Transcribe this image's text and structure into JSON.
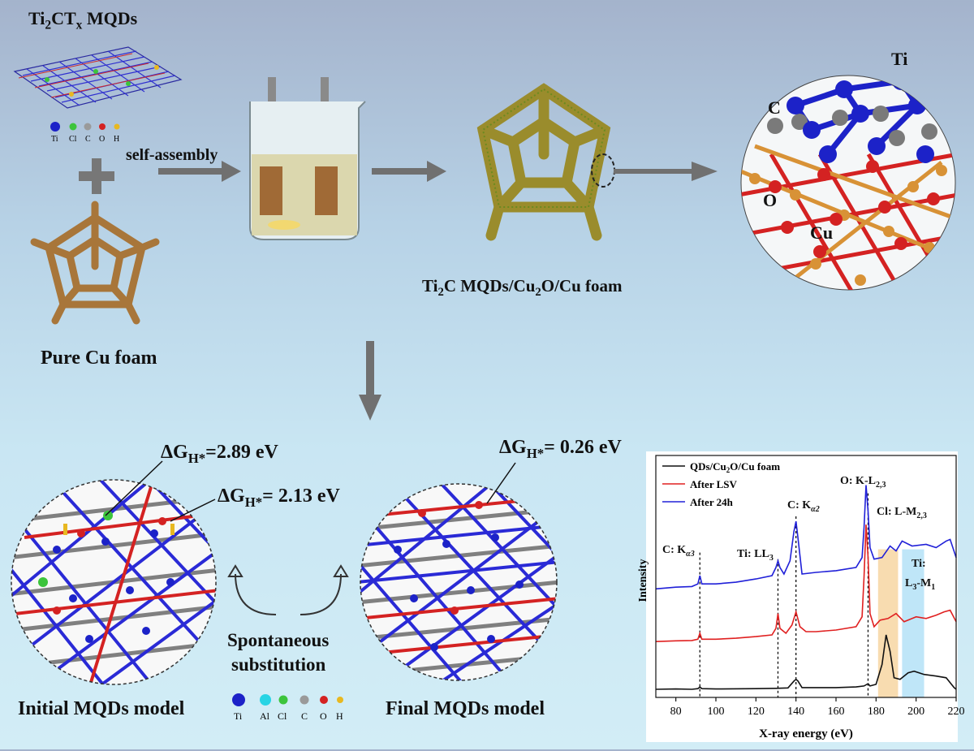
{
  "labels": {
    "mxene_title": "Ti2CTx MQDs",
    "self_assembly": "self-assembly",
    "pure_cu_foam": "Pure Cu foam",
    "composite_foam": "Ti2C MQDs/Cu2O/Cu foam",
    "spontaneous_line1": "Spontaneous",
    "spontaneous_line2": "substitution",
    "initial_model": "Initial MQDs model",
    "final_model": "Final MQDs model",
    "dg_initial_1": "2.89 eV",
    "dg_initial_2": "2.13 eV",
    "dg_final": "0.26 eV"
  },
  "atom_labels": {
    "ti": "Ti",
    "c": "C",
    "o": "O",
    "cu": "Cu"
  },
  "legend_top": [
    {
      "symbol": "Ti",
      "color": "#1c22c8"
    },
    {
      "symbol": "Cl",
      "color": "#3cc43c"
    },
    {
      "symbol": "C",
      "color": "#9a9a9a"
    },
    {
      "symbol": "O",
      "color": "#d42222"
    },
    {
      "symbol": "H",
      "color": "#e8b820"
    }
  ],
  "legend_bottom": [
    {
      "symbol": "Ti",
      "color": "#1c22c8"
    },
    {
      "symbol": "Al",
      "color": "#28d4e4"
    },
    {
      "symbol": "Cl",
      "color": "#3cc43c"
    },
    {
      "symbol": "C",
      "color": "#9a9a9a"
    },
    {
      "symbol": "O",
      "color": "#d42222"
    },
    {
      "symbol": "H",
      "color": "#e8b820"
    }
  ],
  "colors": {
    "arrow": "#707070",
    "foam": "#a8763a",
    "composite": "#9a8c2c",
    "ti": "#1c22c8",
    "carbon": "#7a7a7a",
    "oxygen": "#d42222",
    "copper": "#d89236"
  },
  "chart_data": {
    "type": "line",
    "xlabel": "X-ray energy (eV)",
    "ylabel": "Intensity",
    "xlim": [
      70,
      220
    ],
    "xticks": [
      80,
      100,
      120,
      140,
      160,
      180,
      200,
      220
    ],
    "legend_position": "top-left",
    "series": [
      {
        "name": "QDs/Cu2O/Cu foam",
        "color": "#111111",
        "offset": 0,
        "points": [
          [
            70,
            0.05
          ],
          [
            80,
            0.06
          ],
          [
            88,
            0.05
          ],
          [
            91,
            0.07
          ],
          [
            92,
            0.12
          ],
          [
            93,
            0.07
          ],
          [
            100,
            0.06
          ],
          [
            120,
            0.07
          ],
          [
            130,
            0.08
          ],
          [
            136,
            0.09
          ],
          [
            139,
            0.3
          ],
          [
            140,
            0.35
          ],
          [
            141,
            0.3
          ],
          [
            143,
            0.1
          ],
          [
            150,
            0.1
          ],
          [
            160,
            0.1
          ],
          [
            170,
            0.12
          ],
          [
            174,
            0.15
          ],
          [
            176,
            0.22
          ],
          [
            177,
            0.15
          ],
          [
            180,
            0.2
          ],
          [
            183,
            0.8
          ],
          [
            185,
            1.7
          ],
          [
            187,
            1.2
          ],
          [
            189,
            0.4
          ],
          [
            192,
            0.35
          ],
          [
            196,
            0.55
          ],
          [
            199,
            0.6
          ],
          [
            204,
            0.5
          ],
          [
            210,
            0.45
          ],
          [
            215,
            0.4
          ],
          [
            219,
            0.1
          ],
          [
            220,
            0.05
          ]
        ]
      },
      {
        "name": "After LSV",
        "color": "#e02020",
        "offset": 1.45,
        "points": [
          [
            70,
            0.05
          ],
          [
            80,
            0.07
          ],
          [
            88,
            0.08
          ],
          [
            91,
            0.12
          ],
          [
            92,
            0.3
          ],
          [
            93,
            0.12
          ],
          [
            100,
            0.12
          ],
          [
            110,
            0.15
          ],
          [
            120,
            0.2
          ],
          [
            128,
            0.25
          ],
          [
            130,
            0.45
          ],
          [
            131,
            0.9
          ],
          [
            132,
            0.45
          ],
          [
            135,
            0.3
          ],
          [
            138,
            0.55
          ],
          [
            140,
            0.95
          ],
          [
            142,
            0.5
          ],
          [
            145,
            0.35
          ],
          [
            150,
            0.35
          ],
          [
            160,
            0.4
          ],
          [
            170,
            0.5
          ],
          [
            173,
            0.8
          ],
          [
            174,
            2.0
          ],
          [
            175,
            3.6
          ],
          [
            176,
            2.6
          ],
          [
            177,
            0.9
          ],
          [
            179,
            0.5
          ],
          [
            182,
            0.7
          ],
          [
            186,
            0.75
          ],
          [
            190,
            0.9
          ],
          [
            194,
            0.65
          ],
          [
            200,
            0.8
          ],
          [
            205,
            0.75
          ],
          [
            210,
            0.85
          ],
          [
            214,
            0.95
          ],
          [
            217,
            1.0
          ],
          [
            220,
            0.65
          ]
        ]
      },
      {
        "name": "After 24h",
        "color": "#2020d8",
        "offset": 3.05,
        "points": [
          [
            70,
            0.05
          ],
          [
            80,
            0.1
          ],
          [
            88,
            0.12
          ],
          [
            91,
            0.2
          ],
          [
            92,
            0.45
          ],
          [
            93,
            0.2
          ],
          [
            100,
            0.2
          ],
          [
            110,
            0.25
          ],
          [
            120,
            0.35
          ],
          [
            128,
            0.45
          ],
          [
            130,
            0.7
          ],
          [
            131,
            0.9
          ],
          [
            132,
            0.7
          ],
          [
            134,
            0.5
          ],
          [
            137,
            0.9
          ],
          [
            139,
            1.8
          ],
          [
            140,
            2.1
          ],
          [
            141,
            1.6
          ],
          [
            143,
            0.5
          ],
          [
            150,
            0.55
          ],
          [
            160,
            0.6
          ],
          [
            170,
            0.7
          ],
          [
            173,
            1.0
          ],
          [
            174,
            1.9
          ],
          [
            175,
            3.2
          ],
          [
            176,
            2.4
          ],
          [
            177,
            1.3
          ],
          [
            179,
            0.95
          ],
          [
            183,
            1.0
          ],
          [
            187,
            1.35
          ],
          [
            190,
            1.2
          ],
          [
            193,
            1.5
          ],
          [
            198,
            1.35
          ],
          [
            205,
            1.4
          ],
          [
            210,
            1.3
          ],
          [
            215,
            1.5
          ],
          [
            217,
            1.55
          ],
          [
            220,
            1.0
          ]
        ]
      }
    ],
    "annotations": [
      {
        "label": "C: Kα3",
        "x": 92
      },
      {
        "label": "Ti: LL3",
        "x": 131
      },
      {
        "label": "C: Kα2",
        "x": 140
      },
      {
        "label": "O: K-L2,3",
        "x": 176
      },
      {
        "label": "Cl: L-M2,3",
        "x": 186
      },
      {
        "label": "Ti: L3-M1",
        "x": 198
      }
    ],
    "bands": [
      {
        "label": "Cl: L-M2,3",
        "from": 181,
        "to": 191,
        "color": "#f8dcb0"
      },
      {
        "label": "Ti: L3-M1",
        "from": 193,
        "to": 204,
        "color": "#bfe6f8"
      }
    ]
  }
}
